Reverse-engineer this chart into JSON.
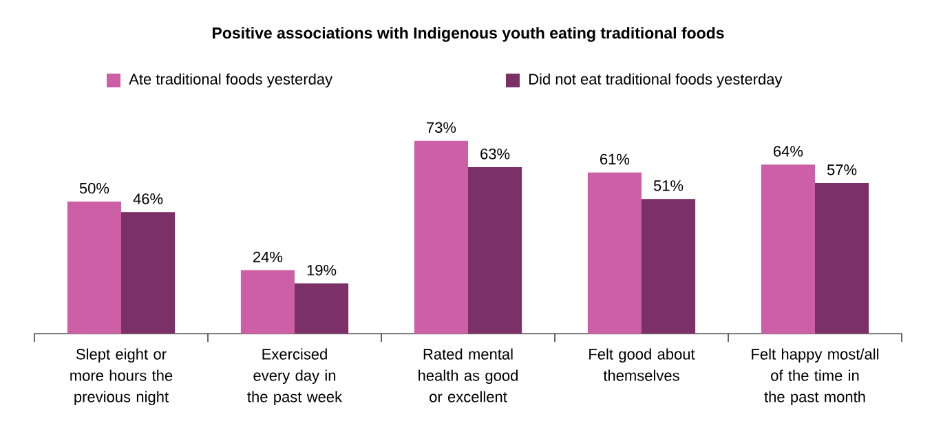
{
  "chart_data": {
    "type": "bar",
    "title": "Positive associations with Indigenous youth eating traditional foods",
    "categories": [
      "Slept eight or more hours the previous night",
      "Exercised every day in the past week",
      "Rated mental health as good or excellent",
      "Felt good about themselves",
      "Felt happy most/all of the time in the past month"
    ],
    "series": [
      {
        "name": "Ate traditional foods yesterday",
        "color": "#cc5fa5",
        "values": [
          50,
          24,
          73,
          61,
          64
        ],
        "value_labels": [
          "50%",
          "24%",
          "73%",
          "61%",
          "64%"
        ]
      },
      {
        "name": "Did not eat traditional foods yesterday",
        "color": "#7b3068",
        "values": [
          46,
          19,
          63,
          51,
          57
        ],
        "value_labels": [
          "46%",
          "19%",
          "63%",
          "51%",
          "57%"
        ]
      }
    ],
    "legend": "top"
  }
}
